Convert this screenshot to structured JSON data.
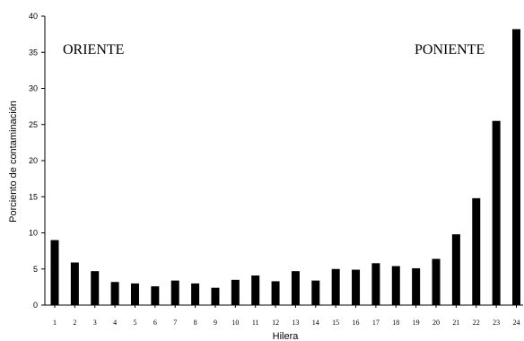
{
  "chart_data": {
    "type": "bar",
    "categories": [
      "1",
      "2",
      "3",
      "4",
      "5",
      "6",
      "7",
      "8",
      "9",
      "10",
      "11",
      "12",
      "13",
      "14",
      "15",
      "16",
      "17",
      "18",
      "19",
      "20",
      "21",
      "22",
      "23",
      "24"
    ],
    "values": [
      9.0,
      5.9,
      4.7,
      3.2,
      3.0,
      2.6,
      3.4,
      3.0,
      2.4,
      3.5,
      4.1,
      3.3,
      4.7,
      3.4,
      5.0,
      4.9,
      5.8,
      5.4,
      5.1,
      6.4,
      9.8,
      14.8,
      25.5,
      38.2
    ],
    "xlabel": "Hilera",
    "ylabel": "Porciento de contaminación",
    "ylim": [
      0,
      40
    ],
    "yticks": [
      0,
      5,
      10,
      15,
      20,
      25,
      30,
      35,
      40
    ],
    "annotations": [
      "ORIENTE",
      "PONIENTE"
    ],
    "bar_color": "#000000",
    "grid": false
  }
}
